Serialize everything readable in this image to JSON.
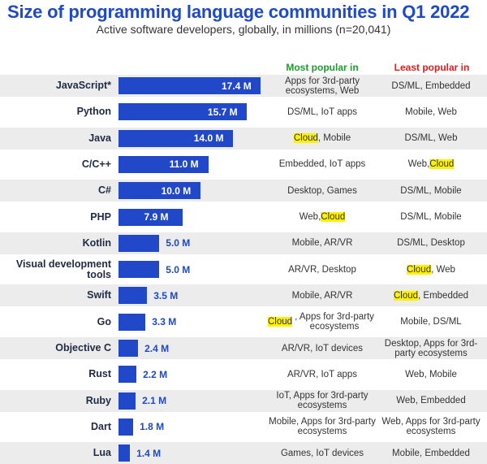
{
  "chart_data": {
    "type": "bar",
    "orientation": "horizontal",
    "title": "Size of programming language communities in Q1 2022",
    "subtitle": "Active software developers, globally, in millions (n=20,041)",
    "unit_suffix": " M",
    "columns": {
      "most_popular": "Most popular in",
      "least_popular": "Least popular in"
    },
    "categories": [
      "JavaScript*",
      "Python",
      "Java",
      "C/C++",
      "C#",
      "PHP",
      "Kotlin",
      "Visual development tools",
      "Swift",
      "Go",
      "Objective C",
      "Rust",
      "Ruby",
      "Dart",
      "Lua"
    ],
    "values": [
      17.4,
      15.7,
      14.0,
      11.0,
      10.0,
      7.9,
      5.0,
      5.0,
      3.5,
      3.3,
      2.4,
      2.2,
      2.1,
      1.8,
      1.4
    ],
    "value_labels": [
      "17.4 M",
      "15.7 M",
      "14.0 M",
      "11.0 M",
      "10.0 M",
      "7.9 M",
      "5.0 M",
      "5.0 M",
      "3.5 M",
      "3.3 M",
      "2.4 M",
      "2.2 M",
      "2.1 M",
      "1.8 M",
      "1.4 M"
    ],
    "most_popular_in": [
      "Apps for 3rd-party ecosystems, Web",
      "DS/ML, IoT apps",
      "Cloud, Mobile",
      "Embedded, IoT apps",
      "Desktop, Games",
      "Web, Cloud",
      "Mobile, AR/VR",
      "AR/VR, Desktop",
      "Mobile, AR/VR",
      "Cloud, Apps for 3rd-party ecosystems",
      "AR/VR, IoT devices",
      "AR/VR, IoT apps",
      "IoT, Apps for 3rd-party ecosystems",
      "Mobile, Apps for 3rd-party ecosystems",
      "Games, IoT devices"
    ],
    "least_popular_in": [
      "DS/ML, Embedded",
      "Mobile, Web",
      "DS/ML, Web",
      "Web, Cloud",
      "DS/ML, Mobile",
      "DS/ML, Mobile",
      "DS/ML, Desktop",
      "Cloud, Web",
      "Cloud, Embedded",
      "Mobile, DS/ML",
      "Desktop, Apps for 3rd-party ecosystems",
      "Web, Mobile",
      "Web, Embedded",
      "Web, Apps for 3rd-party ecosystems",
      "Mobile, Embedded"
    ],
    "highlighted_term": "Cloud",
    "colors": {
      "title": "#1e49c7",
      "bar": "#2148c9",
      "most_header": "#1b9c2b",
      "least_header": "#e01b1b",
      "highlight": "#fff200",
      "row_shade": "#ececec"
    },
    "xlim": [
      0,
      17.4
    ],
    "grid": false,
    "legend": "none"
  }
}
